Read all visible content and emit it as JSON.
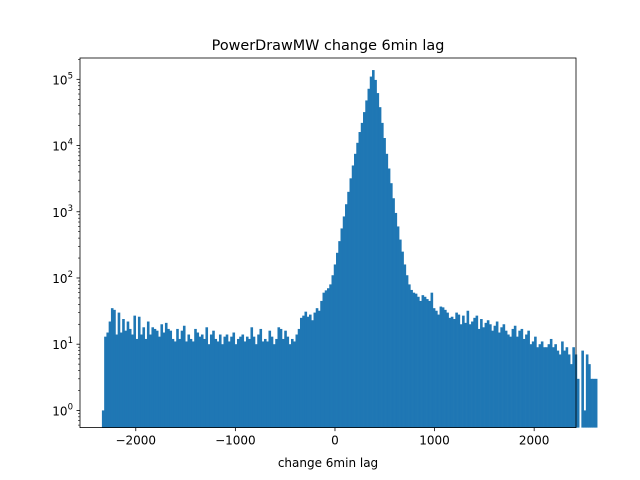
{
  "chart_data": {
    "type": "bar",
    "title": "PowerDrawMW change 6min lag",
    "xlabel": "change 6min lag",
    "ylabel": "",
    "xlim": [
      -2560,
      2420
    ],
    "ylim": [
      0.55,
      210000
    ],
    "yscale": "log",
    "grid": false,
    "x_ticks": [
      -2000,
      -1000,
      0,
      1000,
      2000
    ],
    "x_tick_labels": [
      "−2000",
      "−1000",
      "0",
      "1000",
      "2000"
    ],
    "y_ticks": [
      1,
      10,
      100,
      1000,
      10000,
      100000
    ],
    "y_tick_base": "10",
    "y_tick_exponents": [
      "0",
      "1",
      "2",
      "3",
      "4",
      "5"
    ],
    "bin_start": -2340,
    "bin_width": 22.6,
    "values": [
      1,
      13,
      15,
      22,
      35,
      33,
      14,
      30,
      15,
      24,
      16,
      22,
      17,
      14,
      27,
      12,
      26,
      14,
      18,
      12,
      22,
      14,
      18,
      17,
      16,
      13,
      20,
      15,
      21,
      17,
      16,
      12,
      11,
      17,
      12,
      16,
      19,
      11,
      14,
      12,
      11,
      17,
      15,
      13,
      14,
      12,
      18,
      10,
      14,
      16,
      12,
      11,
      14,
      10,
      13,
      14,
      11,
      13,
      15,
      10,
      12,
      13,
      14,
      11,
      13,
      12,
      18,
      13,
      10,
      14,
      17,
      11,
      12,
      11,
      16,
      13,
      10,
      12,
      18,
      17,
      12,
      16,
      13,
      10,
      12,
      11,
      14,
      17,
      25,
      27,
      31,
      26,
      28,
      23,
      30,
      35,
      32,
      45,
      60,
      65,
      70,
      80,
      110,
      160,
      240,
      360,
      560,
      850,
      1300,
      2000,
      3200,
      5000,
      7500,
      11000,
      16000,
      22000,
      32000,
      48000,
      72000,
      110000,
      138000,
      98000,
      62000,
      38000,
      22000,
      13000,
      7500,
      4500,
      2700,
      1600,
      960,
      600,
      380,
      250,
      160,
      110,
      80,
      66,
      60,
      58,
      52,
      45,
      55,
      52,
      48,
      45,
      60,
      35,
      32,
      28,
      37,
      36,
      33,
      30,
      25,
      26,
      24,
      30,
      28,
      20,
      27,
      21,
      32,
      20,
      22,
      25,
      27,
      17,
      24,
      18,
      21,
      23,
      20,
      16,
      19,
      22,
      15,
      18,
      20,
      16,
      14,
      13,
      17,
      19,
      13,
      16,
      17,
      12,
      14,
      16,
      10,
      11,
      13,
      9,
      10,
      11,
      9,
      9,
      10,
      12,
      9,
      10,
      8,
      7,
      11,
      8,
      9,
      7,
      5,
      9,
      7,
      3,
      0,
      8,
      1,
      7,
      5,
      3,
      3,
      3
    ],
    "bar_color": "#1f77b4"
  }
}
